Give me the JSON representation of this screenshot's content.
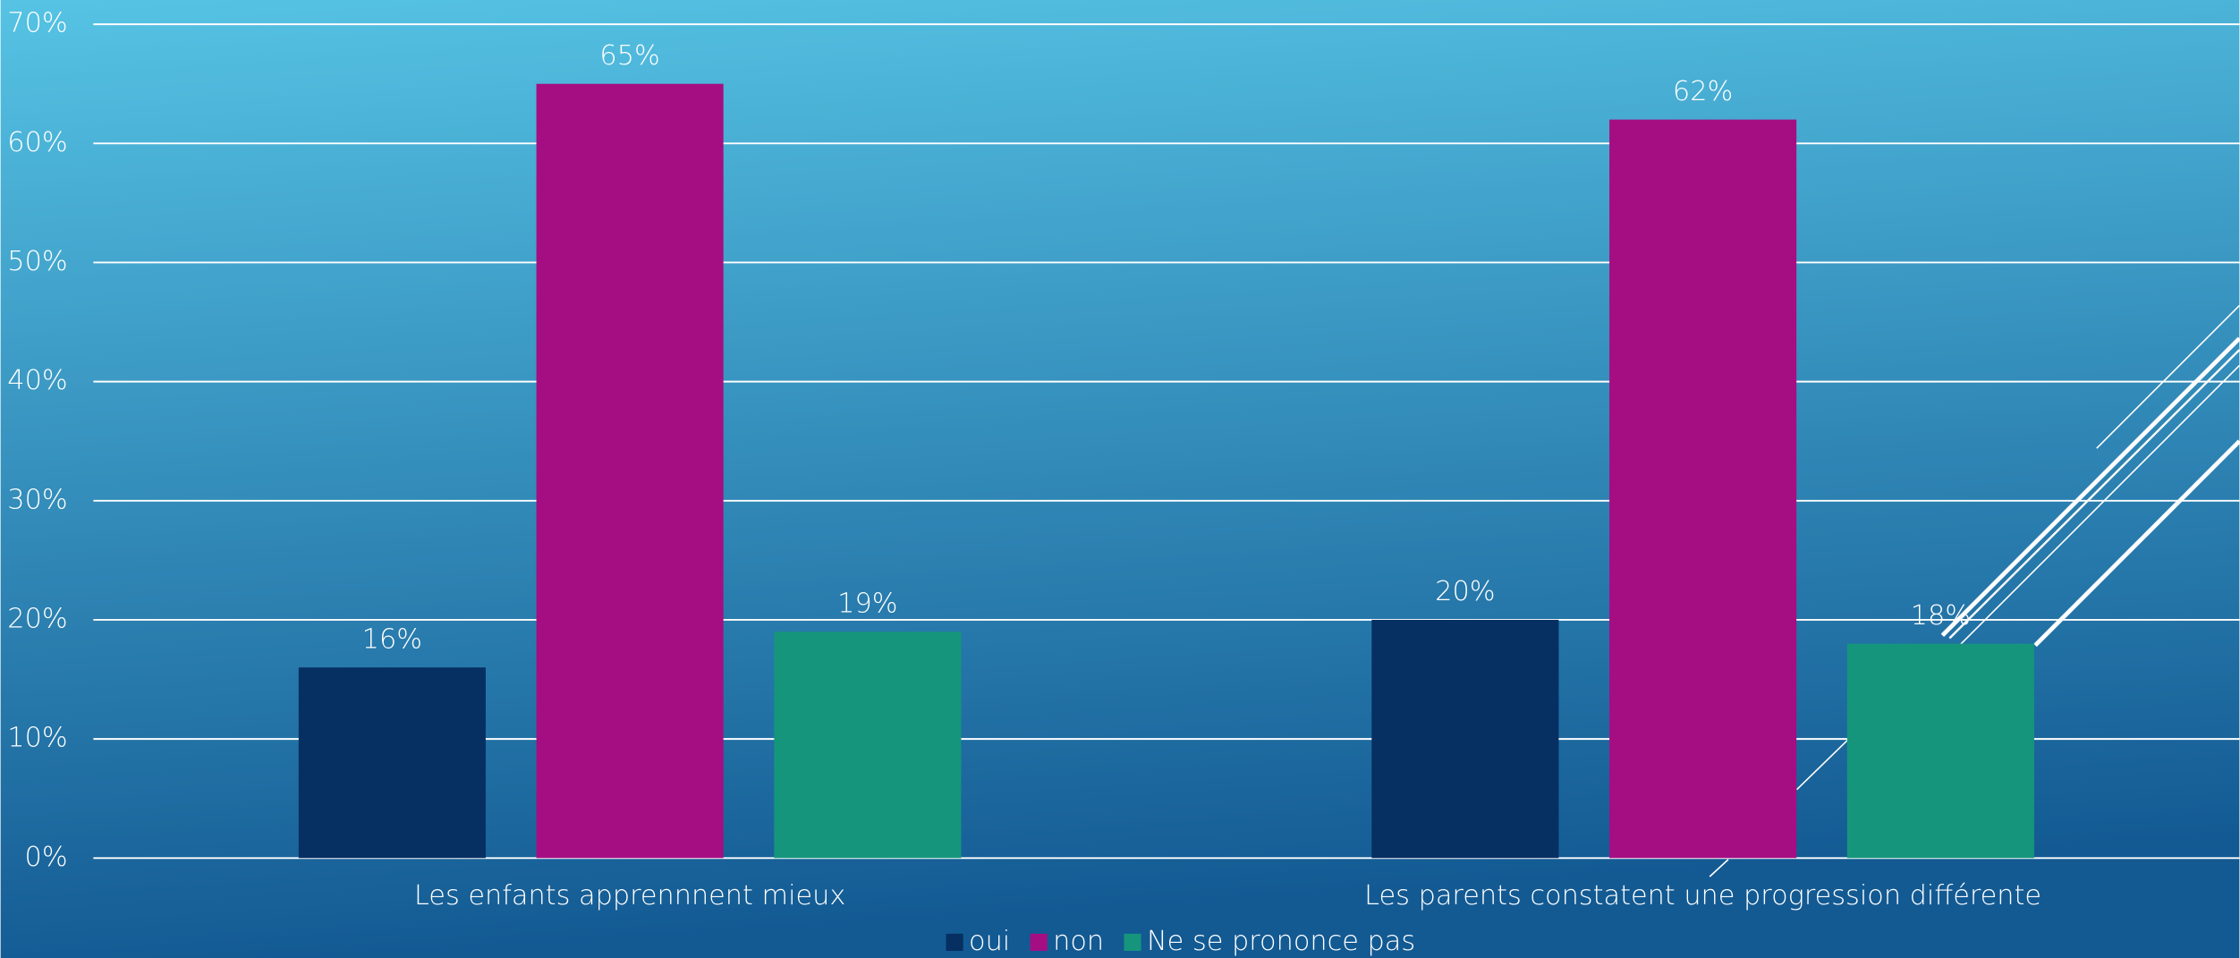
{
  "chart_data": {
    "type": "bar",
    "categories": [
      "Les enfants apprennnent mieux",
      "Les parents constatent une progression différente"
    ],
    "series": [
      {
        "name": "oui",
        "color": "#062f62",
        "values": [
          16,
          20
        ],
        "value_labels": [
          "16%",
          "20%"
        ]
      },
      {
        "name": "non",
        "color": "#a50e82",
        "values": [
          65,
          62
        ],
        "value_labels": [
          "65%",
          "62%"
        ]
      },
      {
        "name": "Ne se prononce pas",
        "color": "#15967c",
        "values": [
          19,
          18
        ],
        "value_labels": [
          "19%",
          "18%"
        ]
      }
    ],
    "ylim": [
      0,
      70
    ],
    "yticks": [
      {
        "value": 0,
        "label": "0%"
      },
      {
        "value": 10,
        "label": "10%"
      },
      {
        "value": 20,
        "label": "20%"
      },
      {
        "value": 30,
        "label": "30%"
      },
      {
        "value": 40,
        "label": "40%"
      },
      {
        "value": 50,
        "label": "50%"
      },
      {
        "value": 60,
        "label": "60%"
      },
      {
        "value": 70,
        "label": "70%"
      }
    ],
    "grid": true,
    "legend": "bottom"
  }
}
